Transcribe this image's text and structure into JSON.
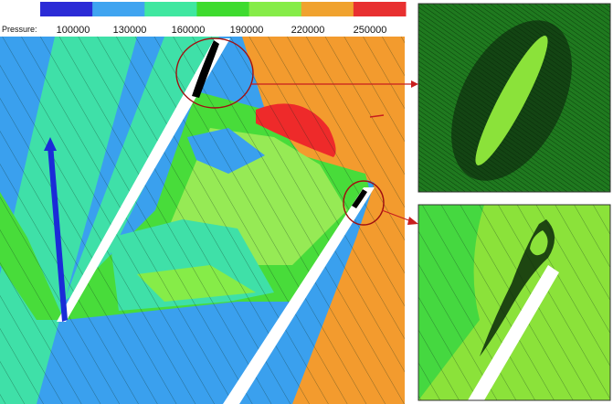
{
  "legend": {
    "title": "Pressure:",
    "ticks": [
      "100000",
      "130000",
      "160000",
      "190000",
      "220000",
      "250000"
    ],
    "colors": [
      "#2b2bd6",
      "#3fa4f0",
      "#3fe7a0",
      "#3edb2e",
      "#86ec48",
      "#f0a22e",
      "#e83030"
    ]
  },
  "palette": {
    "blue_field": "#3aa0ee",
    "cyan_field": "#3fe0a8",
    "green_field": "#48dc3a",
    "lightgreen_field": "#96ea55",
    "orange_field": "#f39b2e",
    "red_field": "#ee2a2a",
    "vector_blue": "#1a2bd8",
    "annotation_red": "#c81e1e"
  },
  "insets": [
    {
      "id": "top-right",
      "content": "mesh detail around leading edge"
    },
    {
      "id": "bottom-right",
      "content": "recirculation streamlines at trailing edge"
    }
  ]
}
